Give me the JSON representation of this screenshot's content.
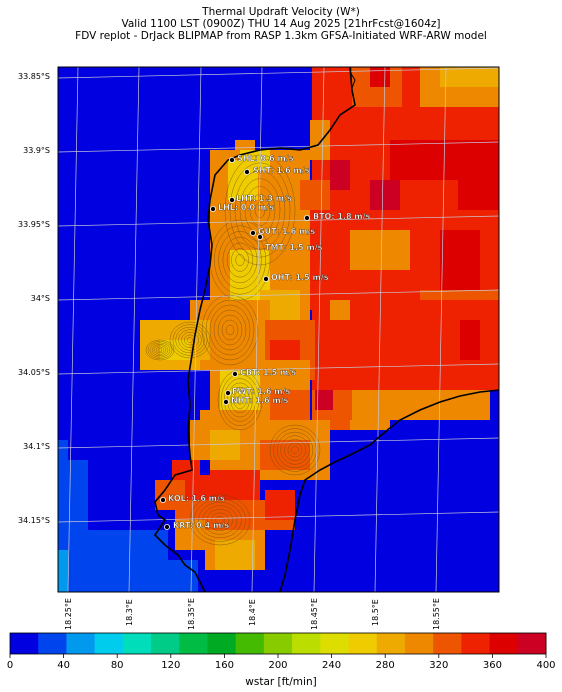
{
  "titles": {
    "line1": "Thermal Updraft Velocity (W*)",
    "line2": "Valid 1100 LST (0900Z) THU 14 Aug 2025 [21hrFcst@1604z]",
    "line3": "FDV replot - DrJack BLIPMAP from RASP 1.3km GFSA-Initiated WRF-ARW model"
  },
  "lat_labels": [
    "33.85°S",
    "33.9°S",
    "33.95°S",
    "34°S",
    "34.05°S",
    "34.1°S",
    "34.15°S"
  ],
  "lon_labels": [
    "18.25°E",
    "18.3°E",
    "18.35°E",
    "18.4°E",
    "18.45°E",
    "18.5°E",
    "18.55°E"
  ],
  "stations": [
    {
      "label": "SHL: 0.6 m/s"
    },
    {
      "label": "SHT: 1.6 m/s"
    },
    {
      "label": "LHT: 1.3 m/s"
    },
    {
      "label": "LHL: 0.0 m/s"
    },
    {
      "label": "BTO: 1.8 m/s"
    },
    {
      "label": "GUT: 1.6 m/s"
    },
    {
      "label": "TMT: 1.5 m/s"
    },
    {
      "label": "OHT: 1.5 m/s"
    },
    {
      "label": "CBT: 1.5 m/s"
    },
    {
      "label": "FWT: 1.6 m/s"
    },
    {
      "label": "NHT: 1.6 m/s"
    },
    {
      "label": "KOL: 1.6 m/s"
    },
    {
      "label": "KRT: 0.4 m/s"
    }
  ],
  "colorbar": {
    "label": "wstar [ft/min]",
    "ticks": [
      "0",
      "40",
      "80",
      "120",
      "160",
      "200",
      "240",
      "280",
      "320",
      "360",
      "400"
    ],
    "colors": [
      "#0000e0",
      "#0044ee",
      "#0099ee",
      "#00ccee",
      "#00ddbb",
      "#00cc88",
      "#00bb44",
      "#00aa22",
      "#44bb00",
      "#88cc00",
      "#bbdd00",
      "#dddd00",
      "#eecc00",
      "#eeaa00",
      "#ee8800",
      "#ee5500",
      "#ee2200",
      "#dd0000",
      "#cc0022"
    ]
  }
}
